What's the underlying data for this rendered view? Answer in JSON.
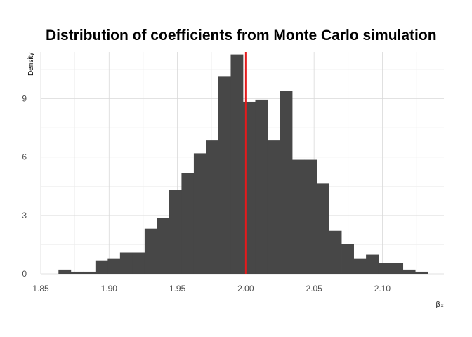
{
  "chart_data": {
    "type": "bar",
    "title": "Distribution of coefficients from Monte Carlo simulation",
    "xlabel": "βₓ",
    "ylabel": "Density",
    "xlim": [
      1.85,
      2.145
    ],
    "ylim": [
      0,
      11.4
    ],
    "x_ticks": [
      "1.85",
      "1.90",
      "1.95",
      "2.00",
      "2.05",
      "2.10"
    ],
    "y_ticks": [
      "0",
      "3",
      "6",
      "9"
    ],
    "bin_width": 0.009,
    "bins": [
      {
        "start": 1.863,
        "value": 0.22
      },
      {
        "start": 1.872,
        "value": 0.11
      },
      {
        "start": 1.881,
        "value": 0.11
      },
      {
        "start": 1.89,
        "value": 0.66
      },
      {
        "start": 1.899,
        "value": 0.77
      },
      {
        "start": 1.908,
        "value": 1.1
      },
      {
        "start": 1.917,
        "value": 1.1
      },
      {
        "start": 1.926,
        "value": 2.32
      },
      {
        "start": 1.935,
        "value": 2.87
      },
      {
        "start": 1.944,
        "value": 4.31
      },
      {
        "start": 1.953,
        "value": 5.19
      },
      {
        "start": 1.962,
        "value": 6.19
      },
      {
        "start": 1.971,
        "value": 6.85
      },
      {
        "start": 1.98,
        "value": 10.16
      },
      {
        "start": 1.989,
        "value": 11.27
      },
      {
        "start": 1.998,
        "value": 8.84
      },
      {
        "start": 2.007,
        "value": 8.95
      },
      {
        "start": 2.016,
        "value": 6.85
      },
      {
        "start": 2.025,
        "value": 9.39
      },
      {
        "start": 2.034,
        "value": 5.86
      },
      {
        "start": 2.043,
        "value": 5.86
      },
      {
        "start": 2.052,
        "value": 4.64
      },
      {
        "start": 2.061,
        "value": 2.21
      },
      {
        "start": 2.07,
        "value": 1.55
      },
      {
        "start": 2.079,
        "value": 0.77
      },
      {
        "start": 2.088,
        "value": 0.99
      },
      {
        "start": 2.097,
        "value": 0.55
      },
      {
        "start": 2.106,
        "value": 0.55
      },
      {
        "start": 2.115,
        "value": 0.22
      },
      {
        "start": 2.124,
        "value": 0.11
      }
    ],
    "reference_line": {
      "x": 2.0,
      "color": "#e41a1c"
    },
    "bar_color": "#474747",
    "grid": true,
    "legend": "none"
  }
}
